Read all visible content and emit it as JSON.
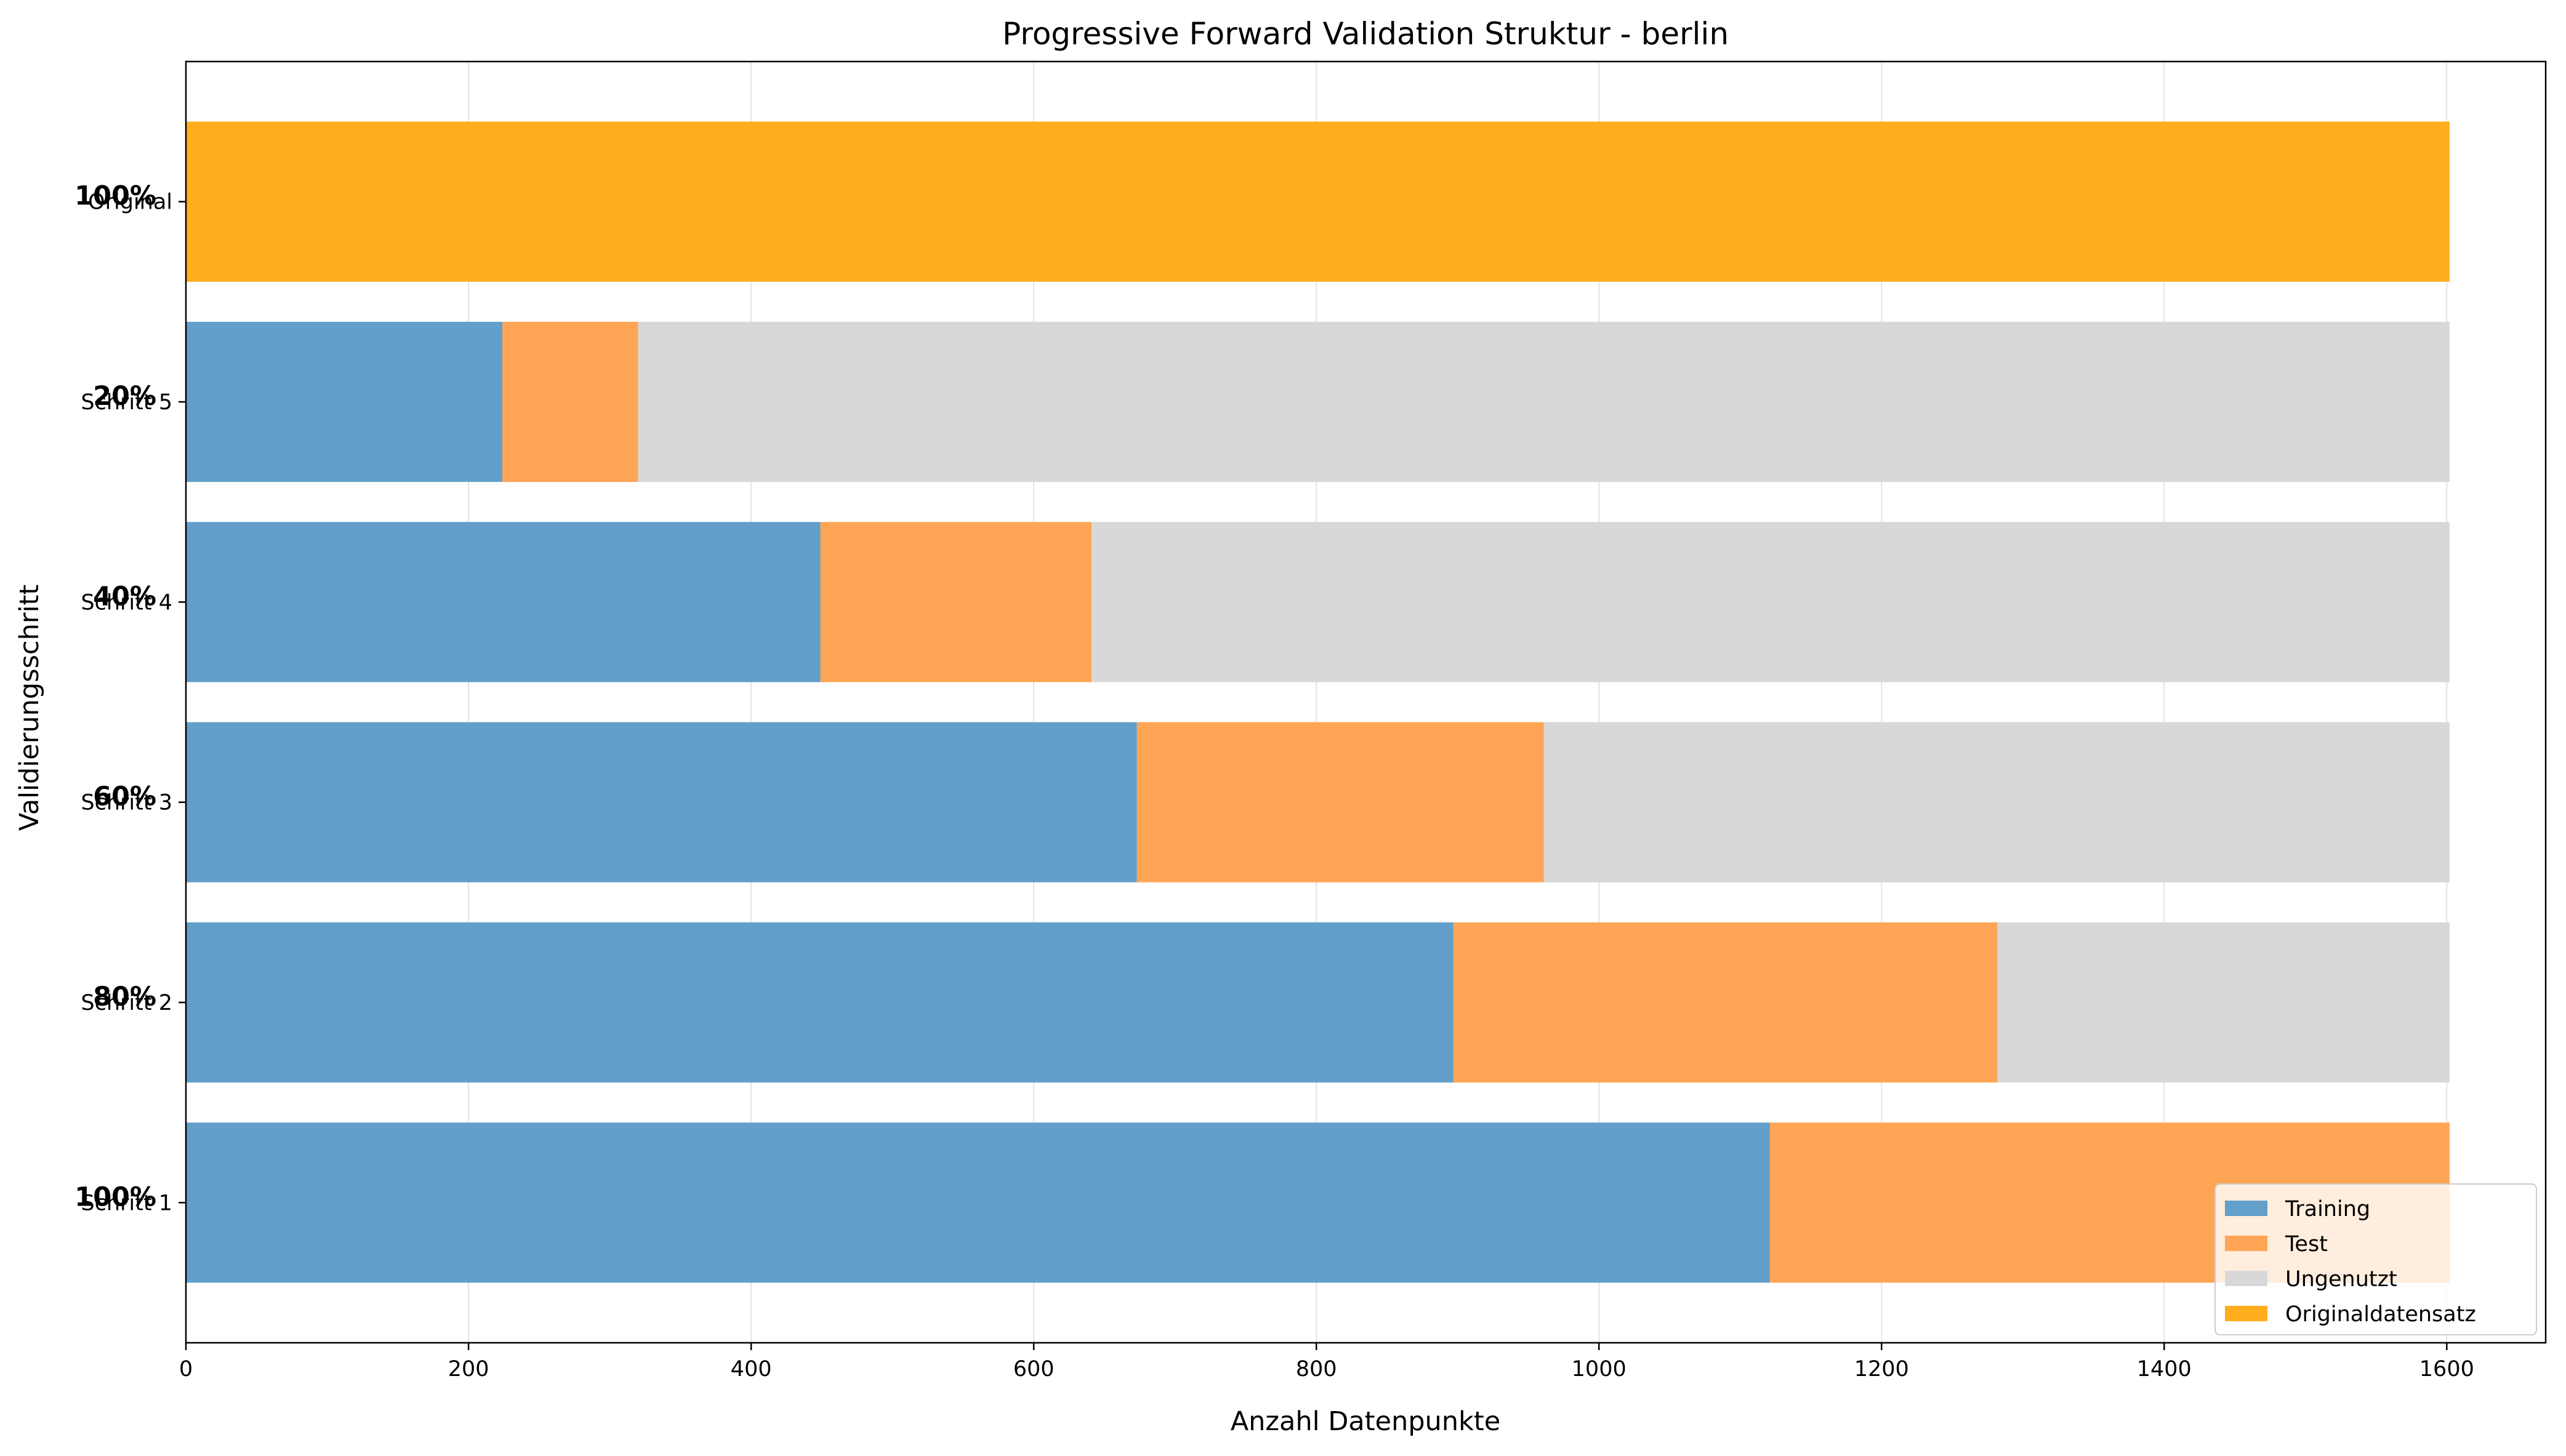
{
  "chart_data": {
    "type": "bar",
    "orientation": "horizontal",
    "stacked": true,
    "title": "Progressive Forward Validation Struktur - berlin",
    "xlabel": "Anzahl Datenpunkte",
    "ylabel": "Validierungsschritt",
    "xlim": [
      0,
      1670
    ],
    "xticks": [
      0,
      200,
      400,
      600,
      800,
      1000,
      1200,
      1400,
      1600
    ],
    "grid": "vertical",
    "legend_position": "lower-right",
    "total": 1602,
    "categories": [
      "Schritt 1",
      "Schritt 2",
      "Schritt 3",
      "Schritt 4",
      "Schritt 5",
      "Original"
    ],
    "percent_labels": [
      "100%",
      "80%",
      "60%",
      "40%",
      "20%",
      "100%"
    ],
    "series": [
      {
        "name": "Training",
        "color": "#629FCA",
        "values": [
          1121,
          897,
          673,
          449,
          224,
          0
        ]
      },
      {
        "name": "Test",
        "color": "#FFA556",
        "values": [
          481,
          385,
          288,
          192,
          96,
          0
        ]
      },
      {
        "name": "Ungenutzt",
        "color": "#D8D8D8",
        "values": [
          0,
          320,
          641,
          961,
          1282,
          0
        ]
      },
      {
        "name": "Originaldatensatz",
        "color": "#FFAE1E",
        "values": [
          0,
          0,
          0,
          0,
          0,
          1602
        ]
      }
    ]
  }
}
